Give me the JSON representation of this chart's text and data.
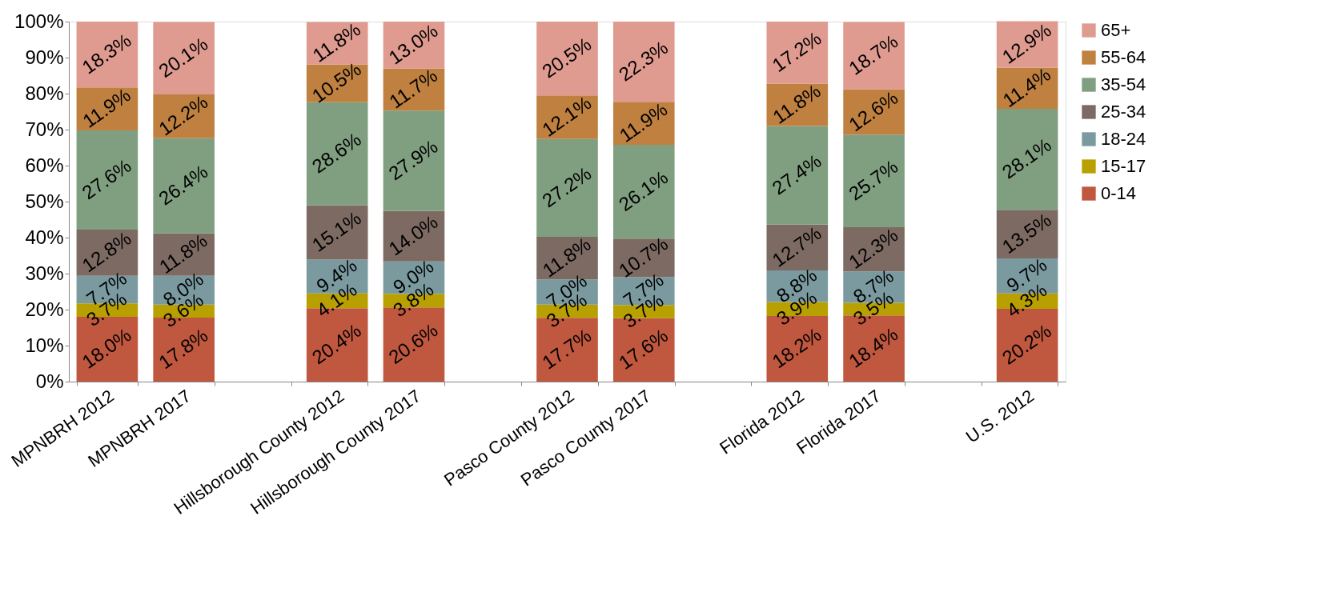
{
  "chart_data": {
    "type": "bar",
    "stacked": true,
    "categories": [
      "MPNBRH 2012",
      "MPNBRH 2017",
      null,
      "Hillsborough County 2012",
      "Hillsborough County 2017",
      null,
      "Pasco County 2012",
      "Pasco County 2017",
      null,
      "Florida 2012",
      "Florida 2017",
      null,
      "U.S. 2012"
    ],
    "series": [
      {
        "name": "0-14",
        "color": "#c0573f",
        "values": [
          18.0,
          17.8,
          null,
          20.4,
          20.6,
          null,
          17.7,
          17.6,
          null,
          18.2,
          18.4,
          null,
          20.2
        ],
        "value_labels": [
          "18.0%",
          "17.8%",
          null,
          "20.4%",
          "20.6%",
          null,
          "17.7%",
          "17.6%",
          null,
          "18.2%",
          "18.4%",
          null,
          "20.2%"
        ]
      },
      {
        "name": "15-17",
        "color": "#b8a000",
        "values": [
          3.7,
          3.6,
          null,
          4.1,
          3.8,
          null,
          3.7,
          3.7,
          null,
          3.9,
          3.5,
          null,
          4.3
        ],
        "value_labels": [
          "3.7%",
          "3.6%",
          null,
          "4.1%",
          "3.8%",
          null,
          "3.7%",
          "3.7%",
          null,
          "3.9%",
          "3.5%",
          null,
          "4.3%"
        ]
      },
      {
        "name": "18-24",
        "color": "#7a9aa0",
        "values": [
          7.7,
          8.0,
          null,
          9.4,
          9.0,
          null,
          7.0,
          7.7,
          null,
          8.8,
          8.7,
          null,
          9.7
        ],
        "value_labels": [
          "7.7%",
          "8.0%",
          null,
          "9.4%",
          "9.0%",
          null,
          "7.0%",
          "7.7%",
          null,
          "8.8%",
          "8.7%",
          null,
          "9.7%"
        ]
      },
      {
        "name": "25-34",
        "color": "#7d6b63",
        "values": [
          12.8,
          11.8,
          null,
          15.1,
          14.0,
          null,
          11.8,
          10.7,
          null,
          12.7,
          12.3,
          null,
          13.5
        ],
        "value_labels": [
          "12.8%",
          "11.8%",
          null,
          "15.1%",
          "14.0%",
          null,
          "11.8%",
          "10.7%",
          null,
          "12.7%",
          "12.3%",
          null,
          "13.5%"
        ]
      },
      {
        "name": "35-54",
        "color": "#809f80",
        "values": [
          27.6,
          26.4,
          null,
          28.6,
          27.9,
          null,
          27.2,
          26.1,
          null,
          27.4,
          25.7,
          null,
          28.1
        ],
        "value_labels": [
          "27.6%",
          "26.4%",
          null,
          "28.6%",
          "27.9%",
          null,
          "27.2%",
          "26.1%",
          null,
          "27.4%",
          "25.7%",
          null,
          "28.1%"
        ]
      },
      {
        "name": "55-64",
        "color": "#bf8040",
        "values": [
          11.9,
          12.2,
          null,
          10.5,
          11.7,
          null,
          12.1,
          11.9,
          null,
          11.8,
          12.6,
          null,
          11.4
        ],
        "value_labels": [
          "11.9%",
          "12.2%",
          null,
          "10.5%",
          "11.7%",
          null,
          "12.1%",
          "11.9%",
          null,
          "11.8%",
          "12.6%",
          null,
          "11.4%"
        ]
      },
      {
        "name": "65+",
        "color": "#e09b90",
        "values": [
          18.3,
          20.1,
          null,
          11.8,
          13.0,
          null,
          20.5,
          22.3,
          null,
          17.2,
          18.7,
          null,
          12.9
        ],
        "value_labels": [
          "18.3%",
          "20.1%",
          null,
          "11.8%",
          "13.0%",
          null,
          "20.5%",
          "22.3%",
          null,
          "17.2%",
          "18.7%",
          null,
          "12.9%"
        ]
      }
    ],
    "ylim": [
      0,
      100
    ],
    "yticks": [
      {
        "value": 0,
        "label": "0%"
      },
      {
        "value": 10,
        "label": "10%"
      },
      {
        "value": 20,
        "label": "20%"
      },
      {
        "value": 30,
        "label": "30%"
      },
      {
        "value": 40,
        "label": "40%"
      },
      {
        "value": 50,
        "label": "50%"
      },
      {
        "value": 60,
        "label": "60%"
      },
      {
        "value": 70,
        "label": "70%"
      },
      {
        "value": 80,
        "label": "80%"
      },
      {
        "value": 90,
        "label": "90%"
      },
      {
        "value": 100,
        "label": "100%"
      }
    ],
    "grid": false,
    "legend": "right"
  }
}
